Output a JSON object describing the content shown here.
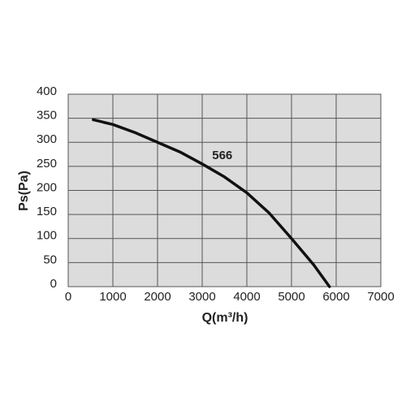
{
  "chart_data": {
    "type": "line",
    "x_label": "Q(m³/h)",
    "y_label": "Ps(Pa)",
    "x": [
      560,
      1000,
      1500,
      2000,
      2500,
      3000,
      3500,
      4000,
      4500,
      5000,
      5500,
      5850
    ],
    "series": [
      {
        "name": "566",
        "color": "#111111",
        "values": [
          347,
          337,
          320,
          300,
          280,
          255,
          228,
          195,
          153,
          100,
          45,
          0
        ]
      }
    ],
    "annotations": [
      {
        "text": "566",
        "x": 3450,
        "y": 272
      }
    ],
    "xlim": [
      0,
      7000
    ],
    "xticks": [
      0,
      1000,
      2000,
      3000,
      4000,
      5000,
      6000,
      7000
    ],
    "ylim": [
      0,
      400
    ],
    "yticks": [
      0,
      50,
      100,
      150,
      200,
      250,
      300,
      350,
      400
    ],
    "grid": true,
    "plot_background": "#dcdcdc"
  }
}
